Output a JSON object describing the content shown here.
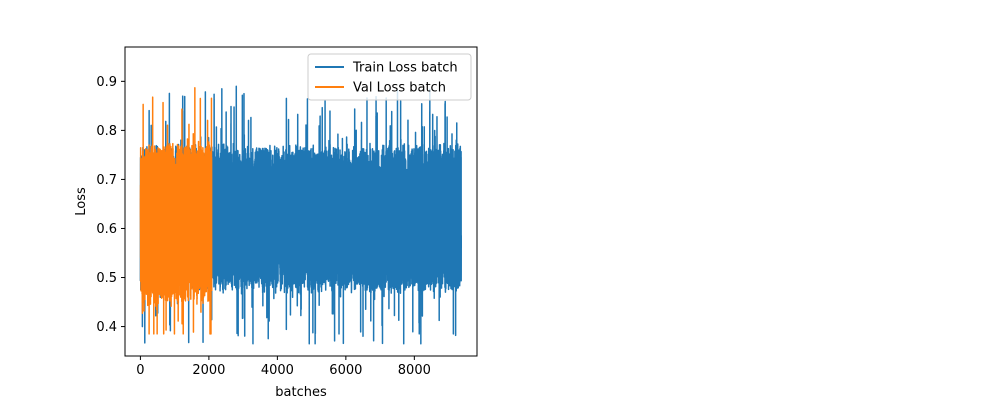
{
  "chart_data": {
    "type": "line",
    "title": "",
    "xlabel": "batches",
    "ylabel": "Loss",
    "xlim": [
      -450,
      9830
    ],
    "ylim": [
      0.34,
      0.97
    ],
    "x_ticks": [
      0,
      2000,
      4000,
      6000,
      8000
    ],
    "x_tick_labels": [
      "0",
      "2000",
      "4000",
      "6000",
      "8000"
    ],
    "y_ticks": [
      0.4,
      0.5,
      0.6,
      0.7,
      0.8,
      0.9
    ],
    "y_tick_labels": [
      "0.4",
      "0.5",
      "0.6",
      "0.7",
      "0.8",
      "0.9"
    ],
    "grid": false,
    "legend_position": "top-right",
    "series": [
      {
        "name": "Train Loss batch",
        "color": "#1f77b4",
        "x_start": 0,
        "x_end": 9370,
        "points": 9371,
        "center": 0.62,
        "typical_range": [
          0.47,
          0.78
        ],
        "min": 0.365,
        "max": 0.89,
        "extremes": [
          {
            "x": 7690,
            "y": 0.365
          },
          {
            "x": 5800,
            "y": 0.385
          },
          {
            "x": 9140,
            "y": 0.385
          },
          {
            "x": 2800,
            "y": 0.89
          },
          {
            "x": 7600,
            "y": 0.86
          }
        ]
      },
      {
        "name": "Val Loss batch",
        "color": "#ff7f0e",
        "x_start": 0,
        "x_end": 2080,
        "points": 2081,
        "center": 0.61,
        "typical_range": [
          0.45,
          0.79
        ],
        "min": 0.385,
        "max": 0.887,
        "extremes": [
          {
            "x": 680,
            "y": 0.385
          },
          {
            "x": 1590,
            "y": 0.887
          },
          {
            "x": 80,
            "y": 0.853
          },
          {
            "x": 1750,
            "y": 0.865
          }
        ]
      }
    ]
  }
}
